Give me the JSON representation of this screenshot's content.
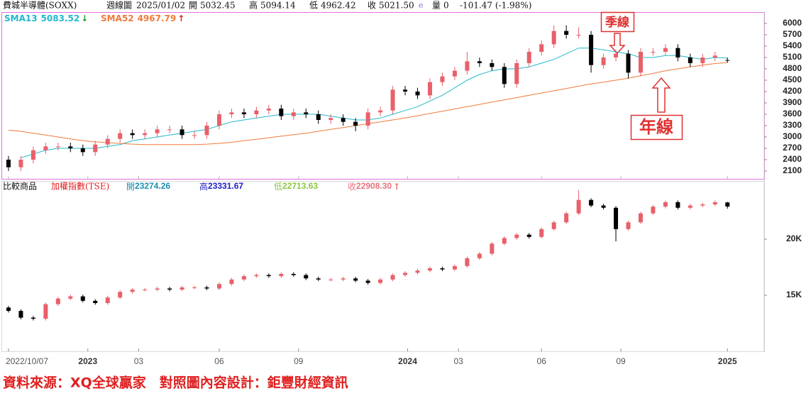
{
  "chart_data": [
    {
      "type": "candlestick",
      "title": "費城半導體(SOXX)",
      "period": "週線圖",
      "date": "2025/01/02",
      "quote": [
        {
          "label": "開",
          "value": "5032.45"
        },
        {
          "label": "高",
          "value": "5094.14"
        },
        {
          "label": "低",
          "value": "4962.42"
        },
        {
          "label": "收",
          "value": "5021.50"
        },
        {
          "label": "e",
          "value": ""
        },
        {
          "label": "量",
          "value": "0"
        }
      ],
      "change": "-101.47 (-1.98%)",
      "up_color": "#e8606a",
      "down_color": "#000000",
      "open": [
        2400,
        2200,
        2400,
        2650,
        2750,
        2750,
        2700,
        2600,
        2800,
        2950,
        3100,
        3050,
        3100,
        3200,
        3200,
        3050,
        3050,
        3300,
        3600,
        3650,
        3600,
        3700,
        3750,
        3550,
        3650,
        3600,
        3450,
        3500,
        3400,
        3300,
        3650,
        3700,
        4250,
        4200,
        4100,
        4450,
        4600,
        4750,
        5000,
        4950,
        4850,
        4400,
        4950,
        5250,
        5450,
        5800,
        5700,
        5700,
        4900,
        5100,
        5200,
        4700,
        5250,
        5250,
        5350,
        5100,
        4950,
        5100,
        5032.45
      ],
      "high": [
        2500,
        2500,
        2750,
        2850,
        2850,
        2850,
        2800,
        2900,
        3050,
        3200,
        3200,
        3200,
        3300,
        3300,
        3300,
        3150,
        3400,
        3700,
        3750,
        3750,
        3800,
        3850,
        3850,
        3750,
        3750,
        3700,
        3600,
        3600,
        3500,
        3750,
        3800,
        4350,
        4350,
        4300,
        4550,
        4700,
        4850,
        5250,
        5100,
        5050,
        4950,
        5050,
        5350,
        5550,
        5950,
        5950,
        5900,
        5800,
        5200,
        5300,
        5300,
        5350,
        5350,
        5450,
        5450,
        5200,
        5200,
        5250,
        5094.14
      ],
      "low": [
        2100,
        2100,
        2300,
        2550,
        2650,
        2600,
        2500,
        2500,
        2700,
        2850,
        2950,
        2950,
        3000,
        3100,
        2950,
        2950,
        2950,
        3200,
        3500,
        3500,
        3500,
        3600,
        3450,
        3450,
        3500,
        3350,
        3350,
        3300,
        3150,
        3200,
        3550,
        3600,
        4100,
        4000,
        4000,
        4350,
        4500,
        4650,
        4850,
        4750,
        4300,
        4300,
        4850,
        5150,
        5350,
        5600,
        5600,
        4700,
        4800,
        5000,
        4550,
        4600,
        5150,
        5150,
        5000,
        4850,
        4850,
        5000,
        4962.42
      ],
      "close": [
        2200,
        2400,
        2650,
        2750,
        2750,
        2700,
        2600,
        2800,
        2950,
        3100,
        3050,
        3100,
        3200,
        3200,
        3050,
        3050,
        3300,
        3600,
        3650,
        3600,
        3700,
        3750,
        3550,
        3650,
        3600,
        3450,
        3500,
        3400,
        3300,
        3650,
        3700,
        4250,
        4200,
        4100,
        4450,
        4600,
        4750,
        5000,
        4950,
        4850,
        4400,
        4950,
        5250,
        5450,
        5800,
        5700,
        5700,
        4900,
        5100,
        5200,
        4700,
        5250,
        5250,
        5350,
        5100,
        4950,
        5100,
        5150,
        5021.5
      ],
      "series": [
        {
          "name": "SMA13",
          "color": "#22b8cc",
          "arrow": "↓",
          "arrow_color": "#1a9a30",
          "values": [
            null,
            2450,
            2550,
            2650,
            2700,
            2700,
            2700,
            2700,
            2750,
            2800,
            2900,
            2950,
            3000,
            3050,
            3100,
            3150,
            3200,
            3300,
            3400,
            3450,
            3500,
            3550,
            3600,
            3600,
            3600,
            3600,
            3550,
            3500,
            3450,
            3450,
            3500,
            3600,
            3700,
            3800,
            3950,
            4100,
            4300,
            4500,
            4650,
            4750,
            4800,
            4800,
            4850,
            4950,
            5050,
            5200,
            5350,
            5350,
            5300,
            5250,
            5200,
            5100,
            5100,
            5150,
            5150,
            5100,
            5050,
            5100,
            5083.52
          ]
        },
        {
          "name": "SMA52",
          "color": "#f07a3a",
          "arrow": "↑",
          "arrow_color": "#e02020",
          "values": [
            3180,
            3150,
            3100,
            3050,
            3000,
            2950,
            2900,
            2870,
            2850,
            2830,
            2810,
            2800,
            2800,
            2800,
            2800,
            2800,
            2810,
            2830,
            2860,
            2900,
            2940,
            2980,
            3020,
            3060,
            3100,
            3150,
            3200,
            3250,
            3300,
            3350,
            3400,
            3450,
            3500,
            3560,
            3620,
            3680,
            3740,
            3800,
            3860,
            3920,
            3980,
            4040,
            4100,
            4160,
            4220,
            4280,
            4340,
            4400,
            4450,
            4500,
            4550,
            4620,
            4680,
            4750,
            4800,
            4850,
            4900,
            4940,
            4967.79
          ]
        }
      ],
      "xlim": [
        -0.57,
        60.96
      ],
      "ylim": [
        1894,
        6300
      ],
      "yticks": [
        2100,
        2400,
        2700,
        3000,
        3300,
        3600,
        3900,
        4200,
        4500,
        4800,
        5100,
        5400,
        5700,
        6000
      ],
      "annotations": [
        "季線",
        "年線"
      ]
    },
    {
      "type": "candlestick",
      "compare_label": "比較商品",
      "title": "加權指數(TSE)",
      "quote": [
        {
          "label": "開",
          "value": "23274.26",
          "color": "#1a8fb0"
        },
        {
          "label": "高",
          "value": "23331.67",
          "color": "#2020c8"
        },
        {
          "label": "低",
          "value": "22713.63",
          "color": "#8cc63f"
        },
        {
          "label": "收",
          "value": "22908.30",
          "color": "#e8737f"
        }
      ],
      "arrow": "↑",
      "up_color": "#e8606a",
      "down_color": "#000000",
      "open": [
        13900,
        13600,
        13000,
        12900,
        14200,
        14700,
        14900,
        14500,
        14300,
        14800,
        15300,
        15500,
        15500,
        15600,
        15500,
        15700,
        15700,
        15600,
        16000,
        16400,
        16700,
        16800,
        16700,
        16900,
        16800,
        16500,
        16400,
        16400,
        16500,
        16300,
        16100,
        16400,
        16800,
        17000,
        17200,
        17400,
        17300,
        17600,
        18300,
        18700,
        19600,
        20100,
        20400,
        20200,
        20900,
        21500,
        22300,
        23500,
        23000,
        22800,
        20900,
        21500,
        22300,
        22900,
        23300,
        22800,
        23000,
        23100,
        23274.26
      ],
      "high": [
        14050,
        13750,
        13150,
        14350,
        14850,
        15050,
        15050,
        14650,
        14950,
        15450,
        15650,
        15650,
        15750,
        15750,
        15850,
        15850,
        15850,
        16150,
        16550,
        16850,
        16950,
        16950,
        17050,
        17050,
        16950,
        16650,
        16550,
        16650,
        16650,
        16450,
        16550,
        16950,
        17150,
        17350,
        17550,
        17550,
        17750,
        18450,
        18850,
        19750,
        20250,
        20550,
        20550,
        21050,
        21650,
        22450,
        24400,
        23650,
        23150,
        22950,
        21650,
        22450,
        23050,
        23450,
        23450,
        23150,
        23250,
        23450,
        23331.67
      ],
      "low": [
        13450,
        12850,
        12750,
        12750,
        14050,
        14550,
        14350,
        14150,
        14150,
        14650,
        15150,
        15350,
        15350,
        15350,
        15350,
        15550,
        15450,
        15450,
        15850,
        16250,
        16550,
        16550,
        16550,
        16650,
        16350,
        16250,
        16250,
        16250,
        16150,
        15950,
        15950,
        16250,
        16650,
        16850,
        17050,
        17150,
        17150,
        17450,
        18150,
        18550,
        19450,
        19950,
        20050,
        20050,
        20750,
        21350,
        22150,
        22850,
        22650,
        19800,
        20750,
        21350,
        22150,
        22750,
        22650,
        22650,
        22850,
        22950,
        22713.63
      ],
      "close": [
        13600,
        13000,
        12900,
        14200,
        14700,
        14900,
        14500,
        14300,
        14800,
        15300,
        15500,
        15500,
        15600,
        15500,
        15700,
        15700,
        15600,
        16000,
        16400,
        16700,
        16800,
        16700,
        16900,
        16800,
        16500,
        16400,
        16400,
        16500,
        16300,
        16100,
        16400,
        16800,
        17000,
        17200,
        17400,
        17300,
        17600,
        18300,
        18700,
        19600,
        20100,
        20400,
        20200,
        20900,
        21500,
        22300,
        23500,
        23000,
        22800,
        20900,
        21500,
        22300,
        22900,
        23300,
        22800,
        23000,
        23100,
        23300,
        22908.3
      ],
      "xlim": [
        -0.57,
        60.96
      ],
      "ylim": [
        10000,
        25190
      ],
      "yticks": [
        {
          "value": 15000,
          "label": "15K"
        },
        {
          "value": 20000,
          "label": "20K"
        }
      ],
      "xticks": [
        {
          "value": 0,
          "label": "2022/10/07"
        },
        {
          "value": 6.4,
          "label": "2023"
        },
        {
          "value": 10.5,
          "label": "03"
        },
        {
          "value": 17,
          "label": "06"
        },
        {
          "value": 23.4,
          "label": "09"
        },
        {
          "value": 32.2,
          "label": "2024"
        },
        {
          "value": 36.3,
          "label": "03"
        },
        {
          "value": 43,
          "label": "06"
        },
        {
          "value": 49.4,
          "label": "09"
        },
        {
          "value": 58,
          "label": "2025"
        }
      ]
    }
  ],
  "footer": "資料來源：XQ全球贏家　對照圖內容設計：鉅豐財經資訊"
}
